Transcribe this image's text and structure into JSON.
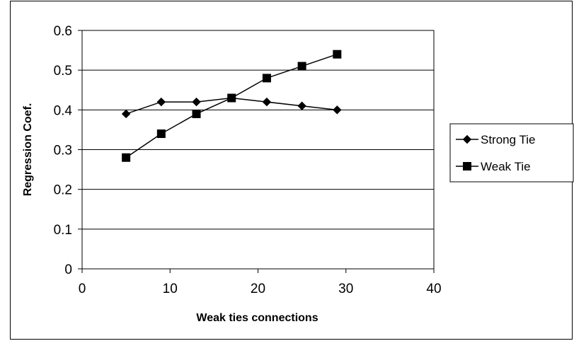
{
  "chart_data": {
    "type": "line",
    "title": "",
    "xlabel": "Weak ties connections",
    "ylabel": "Regression Coef.",
    "xlim": [
      0,
      40
    ],
    "ylim": [
      0,
      0.6
    ],
    "x_ticks": [
      "0",
      "10",
      "20",
      "30",
      "40"
    ],
    "y_ticks": [
      "0",
      "0.1",
      "0.2",
      "0.3",
      "0.4",
      "0.5",
      "0.6"
    ],
    "grid": "horizontal",
    "legend_position": "right",
    "series": [
      {
        "name": "Strong Tie",
        "marker": "diamond",
        "color": "#000000",
        "x": [
          5,
          9,
          13,
          17,
          21,
          25,
          29
        ],
        "y": [
          0.39,
          0.42,
          0.42,
          0.43,
          0.42,
          0.41,
          0.4
        ]
      },
      {
        "name": "Weak Tie",
        "marker": "square",
        "color": "#000000",
        "x": [
          5,
          9,
          13,
          17,
          21,
          25,
          29
        ],
        "y": [
          0.28,
          0.34,
          0.39,
          0.43,
          0.48,
          0.51,
          0.54
        ]
      }
    ]
  }
}
